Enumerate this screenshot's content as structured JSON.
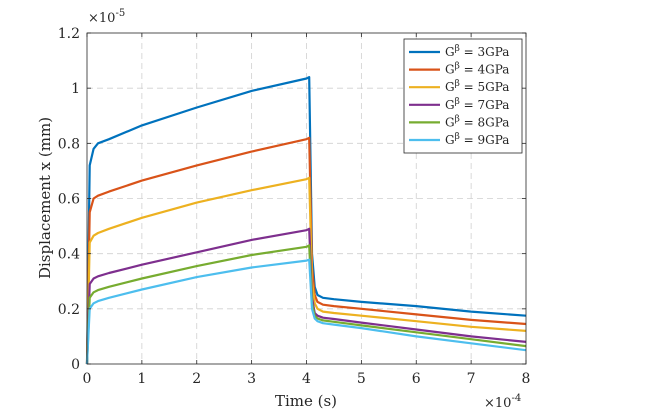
{
  "chart_data": {
    "type": "line",
    "title": "",
    "xlabel": "Time (s)",
    "ylabel": "Displacement x (mm)",
    "x_exponent_label": "×10",
    "x_exponent_power": "-4",
    "y_exponent_label": "×10",
    "y_exponent_power": "-5",
    "xlim": [
      0,
      8
    ],
    "ylim": [
      0,
      1.2
    ],
    "x_ticks": [
      "0",
      "1",
      "2",
      "3",
      "4",
      "5",
      "6",
      "7",
      "8"
    ],
    "y_ticks": [
      "0",
      "0.2",
      "0.4",
      "0.6",
      "0.8",
      "1",
      "1.2"
    ],
    "grid": true,
    "legend_position": "top-right",
    "series": [
      {
        "name": "G^β = 3GPa",
        "name_prefix": "G",
        "name_sup": "β",
        "name_suffix": " = 3GPa",
        "color": "#0072BD",
        "x": [
          0,
          0.05,
          0.12,
          0.2,
          0.4,
          1,
          2,
          3,
          4,
          4.05,
          4.1,
          4.15,
          4.2,
          4.3,
          4.5,
          5,
          6,
          7,
          8
        ],
        "y": [
          0,
          0.72,
          0.78,
          0.8,
          0.815,
          0.865,
          0.93,
          0.99,
          1.035,
          1.04,
          0.4,
          0.28,
          0.25,
          0.24,
          0.235,
          0.225,
          0.21,
          0.19,
          0.175
        ]
      },
      {
        "name": "G^β = 4GPa",
        "name_prefix": "G",
        "name_sup": "β",
        "name_suffix": " = 4GPa",
        "color": "#D95319",
        "x": [
          0,
          0.05,
          0.12,
          0.2,
          0.4,
          1,
          2,
          3,
          4,
          4.05,
          4.1,
          4.15,
          4.2,
          4.3,
          4.5,
          5,
          6,
          7,
          8
        ],
        "y": [
          0,
          0.55,
          0.6,
          0.61,
          0.625,
          0.665,
          0.72,
          0.77,
          0.815,
          0.82,
          0.35,
          0.25,
          0.225,
          0.215,
          0.21,
          0.2,
          0.18,
          0.16,
          0.145
        ]
      },
      {
        "name": "G^β = 5GPa",
        "name_prefix": "G",
        "name_sup": "β",
        "name_suffix": " = 5GPa",
        "color": "#EDB120",
        "x": [
          0,
          0.05,
          0.12,
          0.2,
          0.4,
          1,
          2,
          3,
          4,
          4.05,
          4.1,
          4.15,
          4.2,
          4.3,
          4.5,
          5,
          6,
          7,
          8
        ],
        "y": [
          0,
          0.44,
          0.465,
          0.475,
          0.49,
          0.53,
          0.585,
          0.63,
          0.67,
          0.675,
          0.3,
          0.22,
          0.2,
          0.19,
          0.185,
          0.175,
          0.155,
          0.135,
          0.12
        ]
      },
      {
        "name": "G^β = 7GPa",
        "name_prefix": "G",
        "name_sup": "β",
        "name_suffix": " = 7GPa",
        "color": "#7E2F8E",
        "x": [
          0,
          0.05,
          0.12,
          0.2,
          0.4,
          1,
          2,
          3,
          4,
          4.05,
          4.1,
          4.15,
          4.2,
          4.3,
          4.5,
          5,
          6,
          7,
          8
        ],
        "y": [
          0,
          0.29,
          0.31,
          0.318,
          0.33,
          0.36,
          0.405,
          0.45,
          0.485,
          0.49,
          0.24,
          0.185,
          0.175,
          0.168,
          0.163,
          0.15,
          0.125,
          0.1,
          0.08
        ]
      },
      {
        "name": "G^β = 8GPa",
        "name_prefix": "G",
        "name_sup": "β",
        "name_suffix": " = 8GPa",
        "color": "#77AC30",
        "x": [
          0,
          0.05,
          0.12,
          0.2,
          0.4,
          1,
          2,
          3,
          4,
          4.05,
          4.1,
          4.15,
          4.2,
          4.3,
          4.5,
          5,
          6,
          7,
          8
        ],
        "y": [
          0,
          0.24,
          0.26,
          0.268,
          0.28,
          0.31,
          0.355,
          0.395,
          0.425,
          0.43,
          0.22,
          0.175,
          0.165,
          0.158,
          0.153,
          0.14,
          0.115,
          0.09,
          0.065
        ]
      },
      {
        "name": "G^β = 9GPa",
        "name_prefix": "G",
        "name_sup": "β",
        "name_suffix": " = 9GPa",
        "color": "#4DBEEE",
        "x": [
          0,
          0.05,
          0.12,
          0.2,
          0.4,
          1,
          2,
          3,
          4,
          4.05,
          4.1,
          4.15,
          4.2,
          4.3,
          4.5,
          5,
          6,
          7,
          8
        ],
        "y": [
          0,
          0.2,
          0.22,
          0.228,
          0.24,
          0.27,
          0.315,
          0.35,
          0.375,
          0.378,
          0.2,
          0.165,
          0.155,
          0.148,
          0.143,
          0.13,
          0.1,
          0.075,
          0.05
        ]
      }
    ]
  }
}
